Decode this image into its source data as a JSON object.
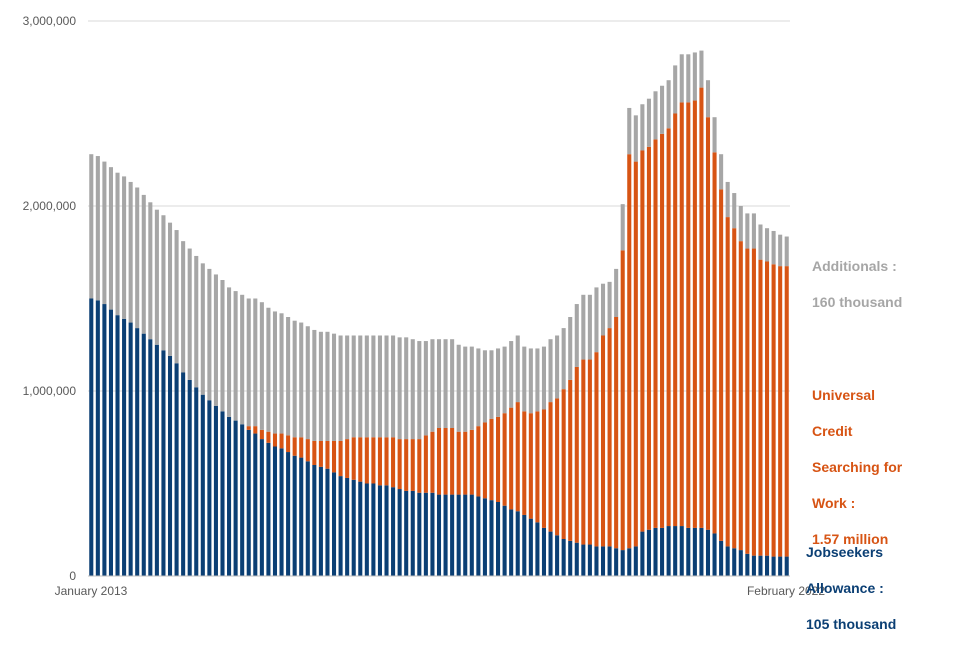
{
  "chart_data": {
    "type": "bar",
    "stacked": true,
    "x_start_label": "January 2013",
    "x_end_label": "February 2022",
    "y_ticks": [
      "0",
      "1,000,000",
      "2,000,000",
      "3,000,000"
    ],
    "y_tick_values": [
      0,
      1000000,
      2000000,
      3000000
    ],
    "ylim": [
      0,
      3000000
    ],
    "grid": true,
    "series_colors": {
      "jsa": "#0b3f74",
      "uc": "#d75414",
      "additionals": "#a6a6a6"
    },
    "jsa_line1": "Jobseekers",
    "jsa_line2": "Allowance :",
    "jsa_line3": "105 thousand",
    "uc_line1": "Universal",
    "uc_line2": "Credit",
    "uc_line3": "Searching for",
    "uc_line4": "Work :",
    "uc_line5": "1.57 million",
    "add_line1": "Additionals  :",
    "add_line2": "160 thousand",
    "jsa": [
      1500000,
      1490000,
      1470000,
      1440000,
      1410000,
      1390000,
      1370000,
      1340000,
      1310000,
      1280000,
      1250000,
      1220000,
      1190000,
      1150000,
      1100000,
      1060000,
      1020000,
      980000,
      950000,
      920000,
      890000,
      860000,
      840000,
      820000,
      790000,
      770000,
      740000,
      720000,
      700000,
      690000,
      670000,
      650000,
      640000,
      620000,
      600000,
      590000,
      580000,
      560000,
      540000,
      530000,
      520000,
      510000,
      500000,
      500000,
      490000,
      490000,
      480000,
      470000,
      460000,
      460000,
      450000,
      450000,
      450000,
      440000,
      440000,
      440000,
      440000,
      440000,
      440000,
      430000,
      420000,
      410000,
      400000,
      380000,
      360000,
      350000,
      330000,
      310000,
      290000,
      260000,
      240000,
      220000,
      200000,
      190000,
      180000,
      170000,
      170000,
      160000,
      160000,
      160000,
      150000,
      140000,
      150000,
      160000,
      240000,
      250000,
      260000,
      260000,
      270000,
      270000,
      270000,
      260000,
      260000,
      260000,
      250000,
      230000,
      190000,
      160000,
      150000,
      140000,
      120000,
      110000,
      110000,
      110000,
      105000,
      105000,
      105000
    ],
    "uc": [
      0,
      0,
      0,
      0,
      0,
      0,
      0,
      0,
      0,
      0,
      0,
      0,
      0,
      0,
      0,
      0,
      0,
      0,
      0,
      0,
      0,
      0,
      0,
      0,
      20000,
      40000,
      50000,
      60000,
      70000,
      80000,
      90000,
      100000,
      110000,
      120000,
      130000,
      140000,
      150000,
      170000,
      190000,
      210000,
      230000,
      240000,
      250000,
      250000,
      260000,
      260000,
      270000,
      270000,
      280000,
      280000,
      290000,
      310000,
      330000,
      360000,
      360000,
      360000,
      340000,
      340000,
      350000,
      380000,
      410000,
      440000,
      460000,
      500000,
      550000,
      590000,
      560000,
      570000,
      600000,
      640000,
      700000,
      740000,
      810000,
      870000,
      950000,
      1000000,
      1000000,
      1050000,
      1140000,
      1180000,
      1250000,
      1620000,
      2130000,
      2080000,
      2060000,
      2070000,
      2100000,
      2130000,
      2150000,
      2230000,
      2290000,
      2300000,
      2310000,
      2380000,
      2230000,
      2060000,
      1900000,
      1780000,
      1730000,
      1670000,
      1650000,
      1660000,
      1600000,
      1590000,
      1580000,
      1570000,
      1570000
    ],
    "additionals": [
      780000,
      780000,
      770000,
      770000,
      770000,
      770000,
      760000,
      760000,
      750000,
      740000,
      730000,
      730000,
      720000,
      720000,
      710000,
      710000,
      710000,
      710000,
      710000,
      710000,
      710000,
      700000,
      700000,
      700000,
      690000,
      690000,
      690000,
      670000,
      660000,
      650000,
      640000,
      630000,
      620000,
      610000,
      600000,
      590000,
      590000,
      580000,
      570000,
      560000,
      550000,
      550000,
      550000,
      550000,
      550000,
      550000,
      550000,
      550000,
      550000,
      540000,
      530000,
      510000,
      500000,
      480000,
      480000,
      480000,
      470000,
      460000,
      450000,
      420000,
      390000,
      370000,
      370000,
      360000,
      360000,
      360000,
      350000,
      350000,
      340000,
      340000,
      340000,
      340000,
      330000,
      340000,
      340000,
      350000,
      350000,
      350000,
      280000,
      250000,
      260000,
      250000,
      250000,
      250000,
      250000,
      260000,
      260000,
      260000,
      260000,
      260000,
      260000,
      260000,
      260000,
      200000,
      200000,
      190000,
      190000,
      190000,
      190000,
      190000,
      190000,
      190000,
      190000,
      180000,
      180000,
      170000,
      160000
    ]
  }
}
